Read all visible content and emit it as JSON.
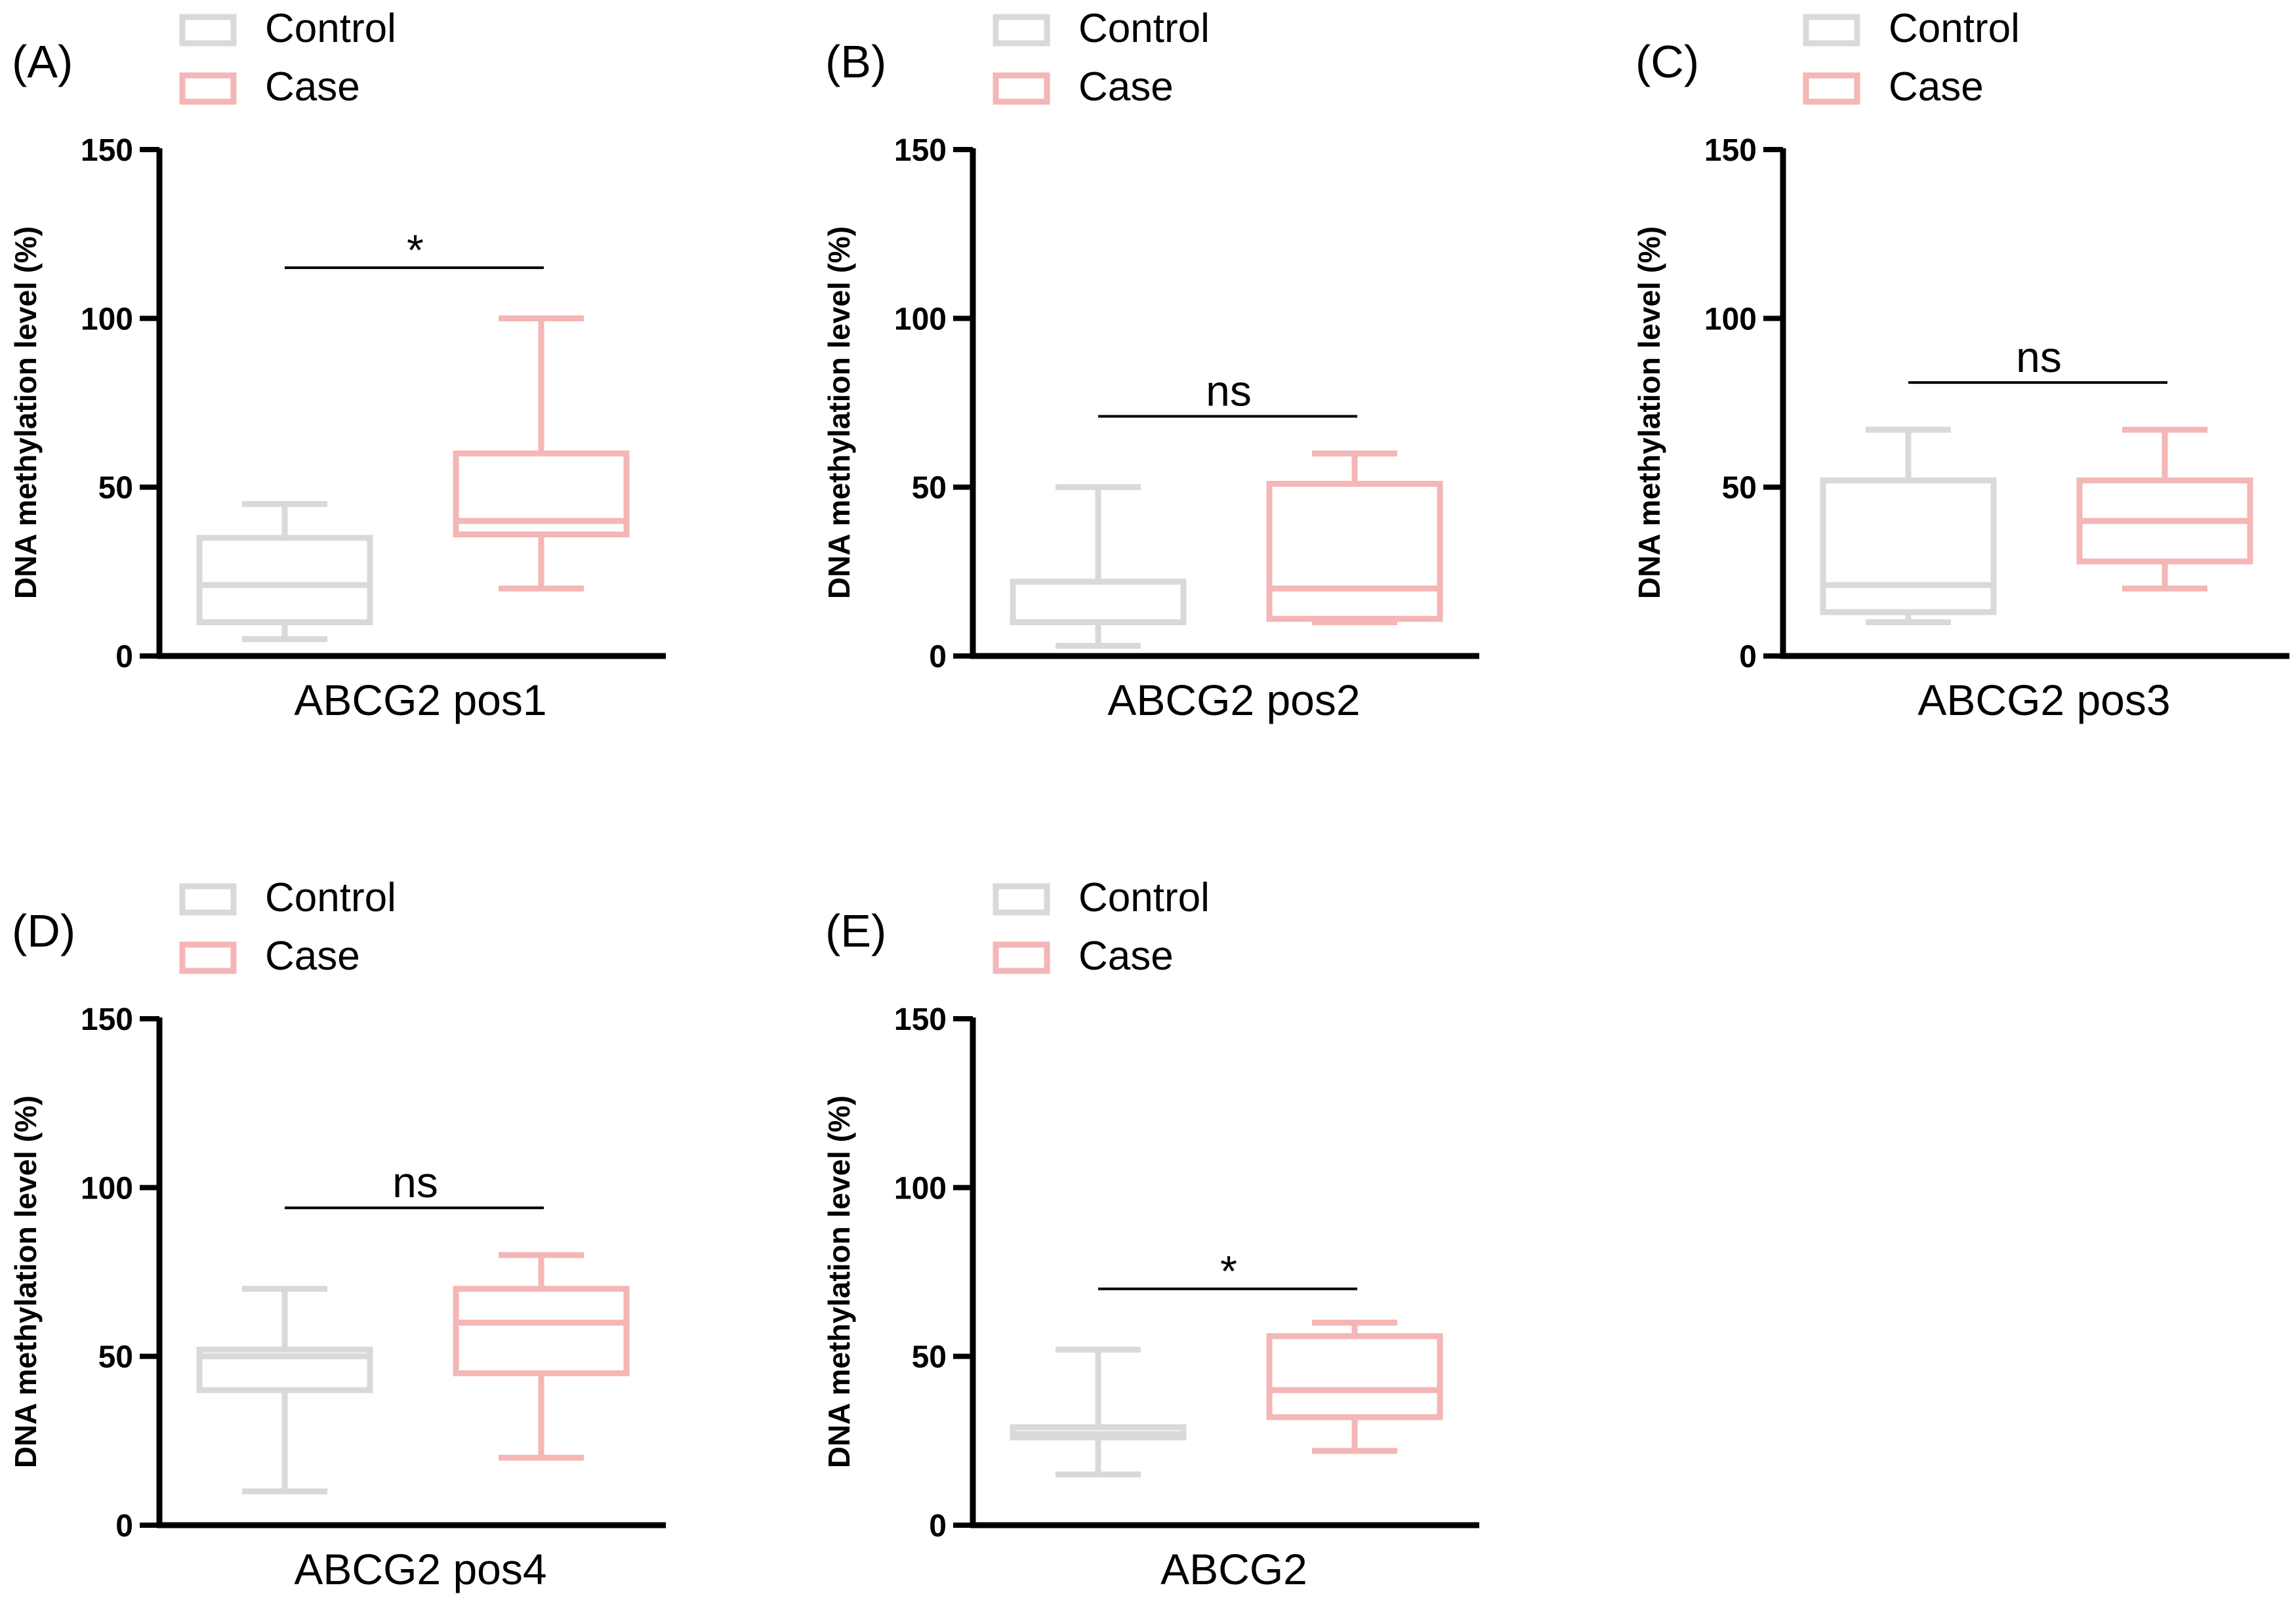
{
  "legend": {
    "control_label": "Control",
    "case_label": "Case"
  },
  "colors": {
    "control": "#d9d9d9",
    "case": "#f4b6b6",
    "axis": "#000000"
  },
  "chart_data": [
    {
      "panel": "(A)",
      "type": "box",
      "category": "ABCG2 pos1",
      "ylabel": "DNA methylation level (%)",
      "ylim": [
        0,
        150
      ],
      "yticks": [
        0,
        50,
        100,
        150
      ],
      "significance": "*",
      "sig_line_y": 115,
      "series": [
        {
          "name": "Control",
          "min": 5,
          "q1": 10,
          "median": 21,
          "q3": 35,
          "max": 45
        },
        {
          "name": "Case",
          "min": 20,
          "q1": 36,
          "median": 40,
          "q3": 60,
          "max": 100
        }
      ]
    },
    {
      "panel": "(B)",
      "type": "box",
      "category": "ABCG2 pos2",
      "ylabel": "DNA methylation level (%)",
      "ylim": [
        0,
        150
      ],
      "yticks": [
        0,
        50,
        100,
        150
      ],
      "significance": "ns",
      "sig_line_y": 71,
      "series": [
        {
          "name": "Control",
          "min": 3,
          "q1": 10,
          "median": 10,
          "q3": 22,
          "max": 50
        },
        {
          "name": "Case",
          "min": 10,
          "q1": 11,
          "median": 20,
          "q3": 51,
          "max": 60
        }
      ]
    },
    {
      "panel": "(C)",
      "type": "box",
      "category": "ABCG2 pos3",
      "ylabel": "DNA methylation level (%)",
      "ylim": [
        0,
        150
      ],
      "yticks": [
        0,
        50,
        100,
        150
      ],
      "significance": "ns",
      "sig_line_y": 81,
      "series": [
        {
          "name": "Control",
          "min": 10,
          "q1": 13,
          "median": 21,
          "q3": 52,
          "max": 67
        },
        {
          "name": "Case",
          "min": 20,
          "q1": 28,
          "median": 40,
          "q3": 52,
          "max": 67
        }
      ]
    },
    {
      "panel": "(D)",
      "type": "box",
      "category": "ABCG2 pos4",
      "ylabel": "DNA methylation level (%)",
      "ylim": [
        0,
        150
      ],
      "yticks": [
        0,
        50,
        100,
        150
      ],
      "significance": "ns",
      "sig_line_y": 94,
      "series": [
        {
          "name": "Control",
          "min": 10,
          "q1": 40,
          "median": 50,
          "q3": 52,
          "max": 70
        },
        {
          "name": "Case",
          "min": 20,
          "q1": 45,
          "median": 60,
          "q3": 70,
          "max": 80
        }
      ]
    },
    {
      "panel": "(E)",
      "type": "box",
      "category": "ABCG2",
      "ylabel": "DNA methylation level (%)",
      "ylim": [
        0,
        150
      ],
      "yticks": [
        0,
        50,
        100,
        150
      ],
      "significance": "*",
      "sig_line_y": 70,
      "series": [
        {
          "name": "Control",
          "min": 15,
          "q1": 26,
          "median": 27,
          "q3": 29,
          "max": 52
        },
        {
          "name": "Case",
          "min": 22,
          "q1": 32,
          "median": 40,
          "q3": 56,
          "max": 60
        }
      ]
    }
  ]
}
